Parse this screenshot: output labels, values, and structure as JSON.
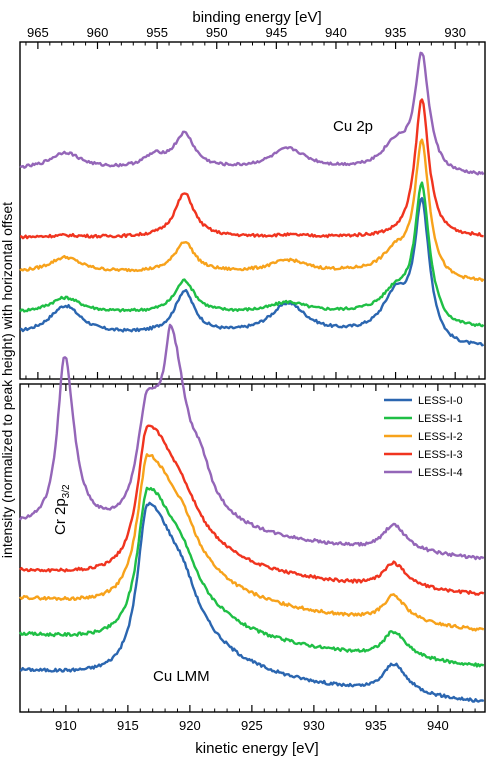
{
  "top_axis_label": "binding energy [eV]",
  "bottom_axis_label": "kinetic energy [eV]",
  "y_axis_label": "intensity (normalized to peak height) with horizontal offset",
  "colors": {
    "LESS-I-0": "#2b66b0",
    "LESS-I-1": "#1fbf45",
    "LESS-I-2": "#f7a21b",
    "LESS-I-3": "#f0341f",
    "LESS-I-4": "#9466b8"
  },
  "chart_data": [
    {
      "type": "line",
      "panel": "top",
      "annotation": "Cu 2p",
      "xlabel": "binding energy [eV]",
      "ylabel": "intensity (normalized to peak height) with horizontal offset",
      "xlim": [
        966.5,
        927.5
      ],
      "x_reversed": true,
      "x_ticks": [
        965,
        960,
        955,
        950,
        945,
        940,
        935,
        930
      ],
      "ylim": [
        0,
        1
      ],
      "grid": false,
      "series": [
        {
          "name": "LESS-I-0",
          "offset": 0.0,
          "baseline": 0.13,
          "tail": 0.04,
          "peaks": [
            [
              962.7,
              0.085,
              1.6
            ],
            [
              952.7,
              0.125,
              1.0
            ],
            [
              944.0,
              0.09,
              1.8
            ],
            [
              935.0,
              0.11,
              1.3
            ],
            [
              932.8,
              0.38,
              0.7
            ]
          ]
        },
        {
          "name": "LESS-I-1",
          "offset": 0.11,
          "baseline": 0.085,
          "tail": 0.045,
          "peaks": [
            [
              962.7,
              0.045,
              1.6
            ],
            [
              952.7,
              0.095,
              1.0
            ],
            [
              944.0,
              0.03,
              1.8
            ],
            [
              935.0,
              0.06,
              1.3
            ],
            [
              932.8,
              0.37,
              0.7
            ]
          ]
        },
        {
          "name": "LESS-I-2",
          "offset": 0.23,
          "baseline": 0.085,
          "tail": 0.03,
          "peaks": [
            [
              962.7,
              0.045,
              1.6
            ],
            [
              952.7,
              0.09,
              1.0
            ],
            [
              944.0,
              0.035,
              1.8
            ],
            [
              935.0,
              0.055,
              1.3
            ],
            [
              932.8,
              0.38,
              0.7
            ]
          ]
        },
        {
          "name": "LESS-I-3",
          "offset": 0.34,
          "baseline": 0.08,
          "tail": 0.0,
          "peaks": [
            [
              962.7,
              0.005,
              1.6
            ],
            [
              952.7,
              0.13,
              1.0
            ],
            [
              944.0,
              0.005,
              1.8
            ],
            [
              935.0,
              0.0,
              1.3
            ],
            [
              932.8,
              0.41,
              0.7
            ]
          ]
        },
        {
          "name": "LESS-I-4",
          "offset": 0.52,
          "baseline": 0.1,
          "tail": 0.02,
          "peaks": [
            [
              962.7,
              0.05,
              1.6
            ],
            [
              955.2,
              0.035,
              1.2
            ],
            [
              952.7,
              0.1,
              1.0
            ],
            [
              944.0,
              0.06,
              1.8
            ],
            [
              935.0,
              0.07,
              1.3
            ],
            [
              932.8,
              0.33,
              0.7
            ]
          ]
        }
      ]
    },
    {
      "type": "line",
      "panel": "bottom",
      "annotations": [
        "Cu LMM",
        "Cr 2p3/2"
      ],
      "xlabel": "kinetic energy [eV]",
      "ylabel": "intensity (normalized to peak height) with horizontal offset",
      "xlim": [
        906.3,
        943.8
      ],
      "x_ticks": [
        910,
        915,
        920,
        925,
        930,
        935,
        940
      ],
      "ylim": [
        0,
        1
      ],
      "legend": "top-right",
      "grid": false,
      "series": [
        {
          "name": "LESS-I-0",
          "offset": 0.0,
          "bg_left": 0.125,
          "bg_right": 0.02,
          "peaks": [
            [
              916.6,
              0.53,
              1.0,
              3.5
            ],
            [
              919.5,
              0.06,
              1.2,
              1.2
            ],
            [
              936.4,
              0.09,
              1.0,
              1.3
            ]
          ]
        },
        {
          "name": "LESS-I-1",
          "offset": 0.11,
          "bg_left": 0.125,
          "bg_right": 0.02,
          "peaks": [
            [
              916.6,
              0.47,
              1.0,
              3.5
            ],
            [
              919.5,
              0.05,
              1.2,
              1.2
            ],
            [
              936.4,
              0.08,
              1.0,
              1.3
            ]
          ]
        },
        {
          "name": "LESS-I-2",
          "offset": 0.22,
          "bg_left": 0.125,
          "bg_right": 0.02,
          "peaks": [
            [
              916.6,
              0.46,
              1.0,
              3.5
            ],
            [
              919.5,
              0.05,
              1.2,
              1.2
            ],
            [
              936.4,
              0.08,
              1.0,
              1.3
            ]
          ]
        },
        {
          "name": "LESS-I-3",
          "offset": 0.33,
          "bg_left": 0.1,
          "bg_right": 0.02,
          "peaks": [
            [
              916.6,
              0.46,
              1.0,
              3.5
            ],
            [
              919.5,
              0.04,
              1.2,
              1.2
            ],
            [
              936.4,
              0.075,
              1.0,
              1.3
            ]
          ]
        },
        {
          "name": "LESS-I-4",
          "offset": 0.44,
          "bg_left": 0.125,
          "bg_right": 0.02,
          "peaks": [
            [
              909.9,
              0.52,
              0.7,
              0.9
            ],
            [
              916.6,
              0.4,
              1.0,
              2.5
            ],
            [
              918.5,
              0.38,
              0.6,
              1.5
            ],
            [
              920.9,
              0.08,
              0.8,
              1.0
            ],
            [
              936.4,
              0.08,
              1.0,
              1.3
            ]
          ]
        }
      ]
    }
  ]
}
